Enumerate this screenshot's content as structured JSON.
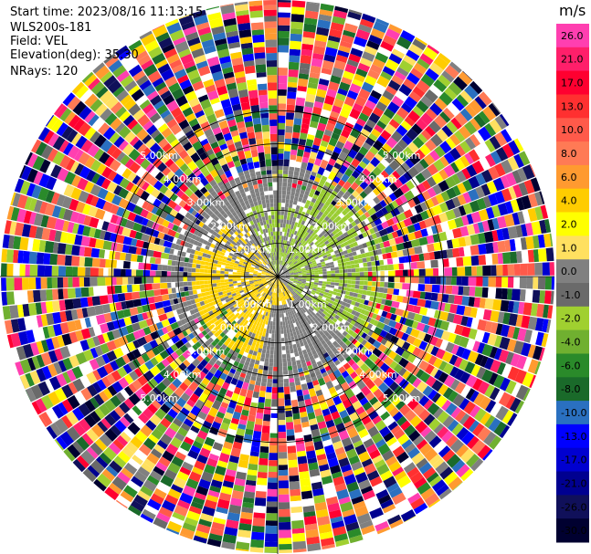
{
  "info": {
    "start_time": "Start time: 2023/08/16 11:13:15",
    "device": "WLS200s-181",
    "field": "Field: VEL",
    "elevation": "Elevation(deg): 35.30",
    "nrays": "NRays: 120"
  },
  "chart_data": {
    "type": "ppi",
    "title": "",
    "range_rings_km": [
      1.0,
      2.0,
      3.0,
      4.0,
      5.0
    ],
    "range_labels": [
      "1.00km",
      "2.00km",
      "3.00km",
      "4.00km",
      "5.00km"
    ],
    "azimuth_lines_deg": [
      0,
      30,
      60,
      90,
      120,
      150,
      180,
      210,
      240,
      270,
      300,
      330
    ],
    "n_rays": 120,
    "max_range_km": 5.0,
    "colorbar": {
      "unit": "m/s",
      "ticks": [
        "26.0",
        "21.0",
        "17.0",
        "13.0",
        "10.0",
        "8.0",
        "6.0",
        "4.0",
        "2.0",
        "1.0",
        "0.0",
        "-1.0",
        "-2.0",
        "-4.0",
        "-6.0",
        "-8.0",
        "-10.0",
        "-13.0",
        "-17.0",
        "-21.0",
        "-26.0",
        "-30.0"
      ],
      "colors": [
        "#ff3fb0",
        "#ff1f6a",
        "#ff0030",
        "#ff3030",
        "#ff5a4a",
        "#ff7a55",
        "#ff9a30",
        "#ffcc00",
        "#ffff00",
        "#ffe060",
        "#808080",
        "#6a6a6a",
        "#a0d030",
        "#70b030",
        "#2a8a2a",
        "#1a6a2a",
        "#2a70c0",
        "#0000ff",
        "#0000d0",
        "#000090",
        "#10105a",
        "#000030"
      ]
    },
    "near_field": {
      "inner_km": 0.5,
      "outer_km": 2.0,
      "description": "velocities near 0 m/s (gray), positive (yellow) toward west/southwest, negative (green) toward east/northeast"
    }
  }
}
